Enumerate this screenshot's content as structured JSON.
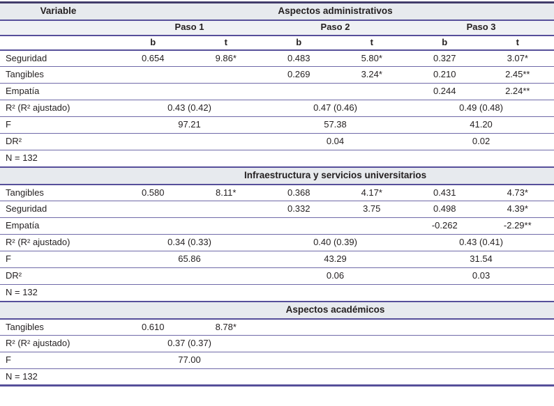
{
  "table": {
    "header": {
      "variable_label": "Variable",
      "col_groups": [
        "Paso 1",
        "Paso 2",
        "Paso 3"
      ],
      "sub_cols": [
        "b",
        "t",
        "b",
        "t",
        "b",
        "t"
      ]
    },
    "sections": [
      {
        "title": "Aspectos administrativos",
        "rows": [
          {
            "type": "values",
            "label": "Seguridad",
            "cells": [
              "0.654",
              "9.86*",
              "0.483",
              "5.80*",
              "0.327",
              "3.07*"
            ]
          },
          {
            "type": "values",
            "label": "Tangibles",
            "cells": [
              "",
              "",
              "0.269",
              "3.24*",
              "0.210",
              "2.45**"
            ]
          },
          {
            "type": "values",
            "label": "Empatía",
            "cells": [
              "",
              "",
              "",
              "",
              "0.244",
              "2.24**"
            ]
          },
          {
            "type": "spans",
            "label": "R² (R² ajustado)",
            "cells": [
              "0.43 (0.42)",
              "0.47 (0.46)",
              "0.49 (0.48)"
            ]
          },
          {
            "type": "spans",
            "label": "F",
            "cells": [
              "97.21",
              "57.38",
              "41.20"
            ]
          },
          {
            "type": "spans",
            "label": "DR²",
            "cells": [
              "",
              "0.04",
              "0.02"
            ]
          },
          {
            "type": "note",
            "label": "N = 132"
          }
        ]
      },
      {
        "title": "Infraestructura y servicios universitarios",
        "rows": [
          {
            "type": "values",
            "label": "Tangibles",
            "cells": [
              "0.580",
              "8.11*",
              "0.368",
              "4.17*",
              "0.431",
              "4.73*"
            ]
          },
          {
            "type": "values",
            "label": "Seguridad",
            "cells": [
              "",
              "",
              "0.332",
              "3.75",
              "0.498",
              "4.39*"
            ]
          },
          {
            "type": "values",
            "label": "Empatía",
            "cells": [
              "",
              "",
              "",
              "",
              "-0.262",
              "-2.29**"
            ]
          },
          {
            "type": "spans",
            "label": "R² (R² ajustado)",
            "cells": [
              "0.34 (0.33)",
              "0.40 (0.39)",
              "0.43 (0.41)"
            ]
          },
          {
            "type": "spans",
            "label": "F",
            "cells": [
              "65.86",
              "43.29",
              "31.54"
            ]
          },
          {
            "type": "spans",
            "label": "DR²",
            "cells": [
              "",
              "0.06",
              "0.03"
            ]
          },
          {
            "type": "note",
            "label": "N = 132"
          }
        ]
      },
      {
        "title": "Aspectos académicos",
        "rows": [
          {
            "type": "values",
            "label": "Tangibles",
            "cells": [
              "0.610",
              "8.78*",
              "",
              "",
              "",
              ""
            ]
          },
          {
            "type": "spans",
            "label": "R² (R² ajustado)",
            "cells": [
              "0.37 (0.37)",
              "",
              ""
            ]
          },
          {
            "type": "spans",
            "label": "F",
            "cells": [
              "77.00",
              "",
              ""
            ]
          },
          {
            "type": "note",
            "label": "N = 132"
          }
        ]
      }
    ],
    "colors": {
      "rule": "#564f9a",
      "rule_thin": "#6f69a8",
      "rule_dark": "#423c6b",
      "header_bg": "#e7eaee",
      "subheader_bg": "#eff1f4",
      "text": "#231f20"
    }
  }
}
